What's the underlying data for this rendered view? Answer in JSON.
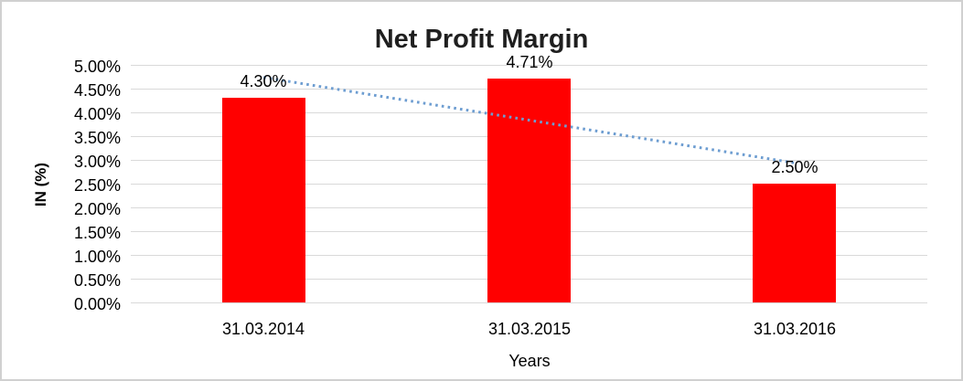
{
  "chart_data": {
    "type": "bar",
    "title": "Net Profit Margin",
    "xlabel": "Years",
    "ylabel": "IN (%)",
    "categories": [
      "31.03.2014",
      "31.03.2015",
      "31.03.2016"
    ],
    "values": [
      4.3,
      4.71,
      2.5
    ],
    "value_labels": [
      "4.30%",
      "4.71%",
      "2.50%"
    ],
    "ytick_labels": [
      "0.00%",
      "0.50%",
      "1.00%",
      "1.50%",
      "2.00%",
      "2.50%",
      "3.00%",
      "3.50%",
      "4.00%",
      "4.50%",
      "5.00%"
    ],
    "ytick_values": [
      0,
      0.5,
      1,
      1.5,
      2,
      2.5,
      3,
      3.5,
      4,
      4.5,
      5
    ],
    "ylim": [
      0,
      5
    ],
    "grid": true,
    "legend": "none",
    "bar_color": "#ff0000",
    "trendline": {
      "type": "linear",
      "style": "dotted",
      "color": "#6d9dd1"
    },
    "gridline_color": "#d9d9d9",
    "text_color": "#000000",
    "title_color": "#1f1f1f",
    "border_color": "#d0d0d0",
    "background": "#ffffff"
  }
}
